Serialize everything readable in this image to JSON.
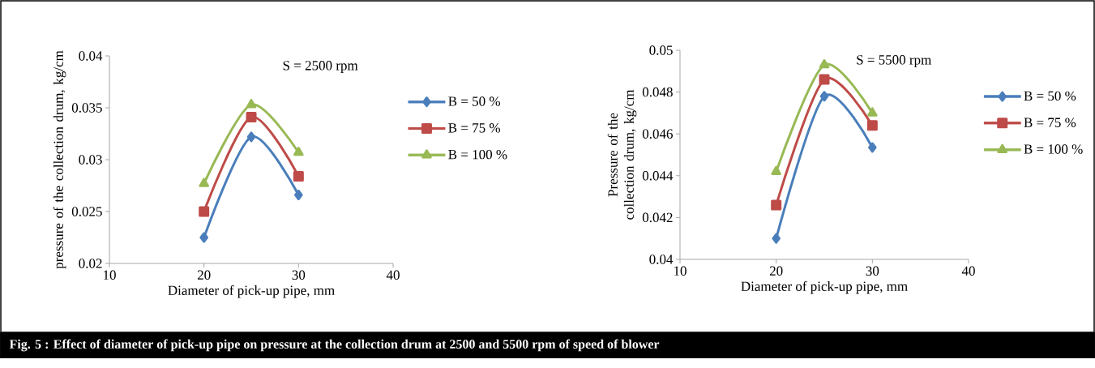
{
  "chart_data": [
    {
      "type": "line",
      "xlabel": "Diameter of pick-up pipe, mm",
      "ylabel": "pressure  of the collection drum, kg/cm",
      "x": [
        20,
        25,
        30
      ],
      "xlim": [
        10,
        40
      ],
      "xticks": [
        10,
        20,
        30,
        40
      ],
      "ylim": [
        0.02,
        0.04
      ],
      "yticks": [
        0.02,
        0.025,
        0.03,
        0.035,
        0.04
      ],
      "legend": "right",
      "annotations": [
        "S = 2500 rpm",
        "Fig. 5 :   Effect of  diameter of pick-up pipe on pressure at the collection drum at 2500 and 5500 rpm of speed of blower"
      ],
      "series": [
        {
          "name": "B = 50 %",
          "color": "#4a7ebb",
          "marker": "diamond",
          "values": [
            0.0225,
            0.0322,
            0.0266
          ]
        },
        {
          "name": "B = 75 %",
          "color": "#be4b48",
          "marker": "square",
          "values": [
            0.025,
            0.0341,
            0.0284
          ]
        },
        {
          "name": "B = 100 %",
          "color": "#98b954",
          "marker": "triangle",
          "values": [
            0.0277,
            0.0353,
            0.0307
          ]
        }
      ]
    },
    {
      "type": "line",
      "xlabel": "Diameter of pick-up pipe, mm",
      "ylabel": "Pressure of the collection drum, kg/cm",
      "x": [
        20,
        25,
        30
      ],
      "xlim": [
        10,
        40
      ],
      "xticks": [
        10,
        20,
        30,
        40
      ],
      "ylim": [
        0.04,
        0.05
      ],
      "yticks": [
        0.04,
        0.042,
        0.044,
        0.046,
        0.048,
        0.05
      ],
      "legend": "right",
      "annotations": [
        "S = 5500 rpm"
      ],
      "series": [
        {
          "name": "B = 50 %",
          "color": "#4a7ebb",
          "marker": "diamond",
          "values": [
            0.041,
            0.0478,
            0.04535
          ]
        },
        {
          "name": "B = 75 %",
          "color": "#be4b48",
          "marker": "square",
          "values": [
            0.0426,
            0.0486,
            0.0464
          ]
        },
        {
          "name": "B = 100 %",
          "color": "#98b954",
          "marker": "triangle",
          "values": [
            0.0442,
            0.0493,
            0.047
          ]
        }
      ]
    }
  ]
}
